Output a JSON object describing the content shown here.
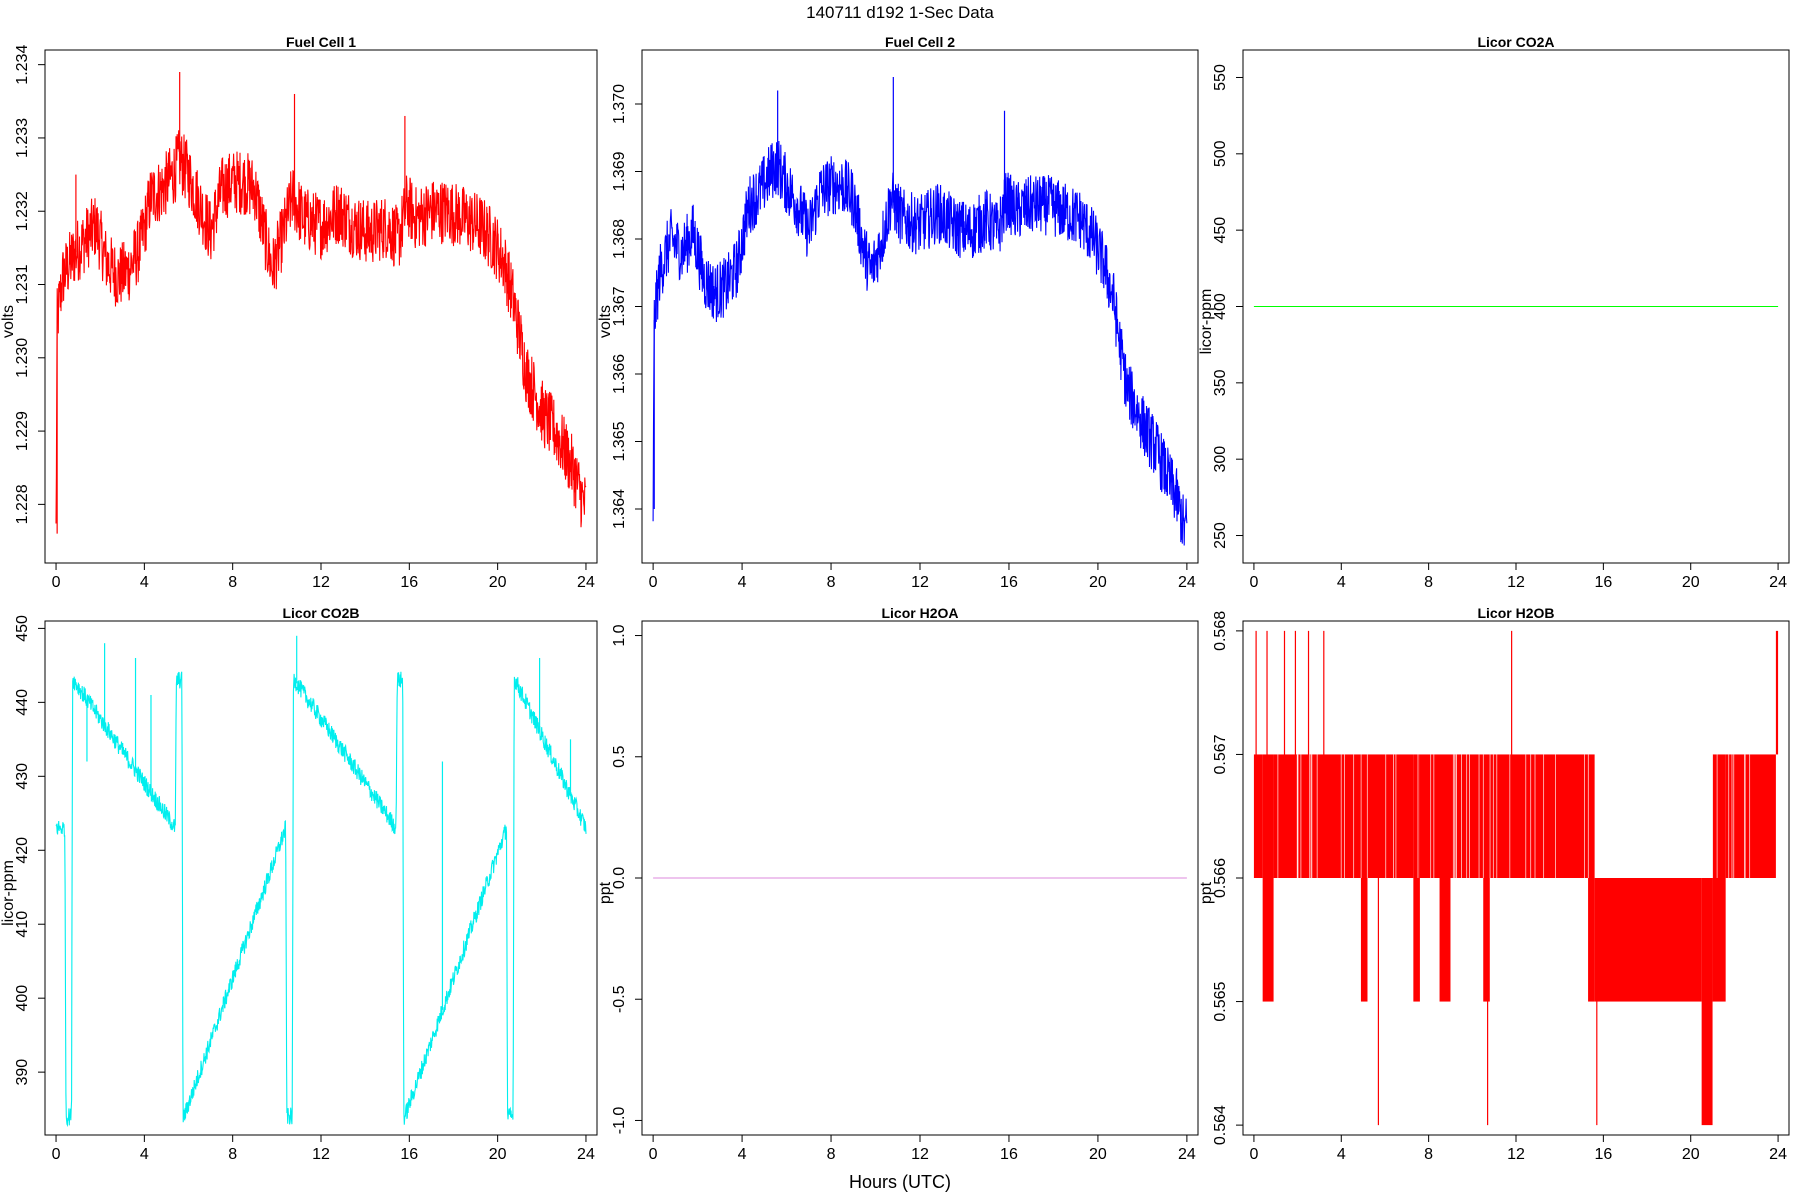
{
  "figure": {
    "title": "140711   d192   1-Sec Data",
    "xlabel": "Hours (UTC)"
  },
  "chart_data": [
    {
      "type": "line",
      "title": "Fuel Cell 1",
      "ylabel": "volts",
      "color": "#ff0000",
      "noise": 0.00045,
      "xlim": [
        -0.5,
        24.5
      ],
      "ylim": [
        1.2272,
        1.2342
      ],
      "xticks": [
        0,
        4,
        8,
        12,
        16,
        20,
        24
      ],
      "yticks": [
        1.228,
        1.229,
        1.23,
        1.231,
        1.232,
        1.233,
        1.234
      ],
      "ytick_labels": [
        "1.228",
        "1.229",
        "1.230",
        "1.231",
        "1.232",
        "1.233",
        "1.234"
      ],
      "x": [
        0,
        0.05,
        0.3,
        0.8,
        1.3,
        1.8,
        2.3,
        2.8,
        3.3,
        3.8,
        4.3,
        4.8,
        5.3,
        5.6,
        6.0,
        6.5,
        7.0,
        7.5,
        8.0,
        8.5,
        9.0,
        9.5,
        9.8,
        10.3,
        10.7,
        11.2,
        12.0,
        12.8,
        13.5,
        14.2,
        15.0,
        15.5,
        15.9,
        16.3,
        17.0,
        17.8,
        18.5,
        19.2,
        19.8,
        20.3,
        20.7,
        21.0,
        21.3,
        21.7,
        22.1,
        22.6,
        23.1,
        23.5,
        23.9,
        24.0
      ],
      "y": [
        1.2276,
        1.2305,
        1.2311,
        1.2314,
        1.2316,
        1.2318,
        1.2313,
        1.2311,
        1.2312,
        1.2315,
        1.2322,
        1.2323,
        1.2325,
        1.2327,
        1.2325,
        1.2321,
        1.2317,
        1.2323,
        1.2324,
        1.2324,
        1.2323,
        1.2316,
        1.2312,
        1.2317,
        1.2322,
        1.2319,
        1.2318,
        1.232,
        1.2318,
        1.2317,
        1.2318,
        1.2316,
        1.2321,
        1.2319,
        1.232,
        1.232,
        1.2319,
        1.2318,
        1.2316,
        1.2313,
        1.2308,
        1.2303,
        1.2298,
        1.2295,
        1.2292,
        1.229,
        1.2287,
        1.2284,
        1.228,
        1.228
      ],
      "spikes": [
        [
          0.05,
          1.2276
        ],
        [
          0.9,
          1.2325
        ],
        [
          5.6,
          1.2339
        ],
        [
          10.8,
          1.2336
        ],
        [
          15.8,
          1.2333
        ]
      ]
    },
    {
      "type": "line",
      "title": "Fuel Cell 2",
      "ylabel": "volts",
      "color": "#0000ff",
      "noise": 0.00045,
      "xlim": [
        -0.5,
        24.5
      ],
      "ylim": [
        1.3632,
        1.3708
      ],
      "xticks": [
        0,
        4,
        8,
        12,
        16,
        20,
        24
      ],
      "yticks": [
        1.364,
        1.365,
        1.366,
        1.367,
        1.368,
        1.369,
        1.37
      ],
      "ytick_labels": [
        "1.364",
        "1.365",
        "1.366",
        "1.367",
        "1.368",
        "1.369",
        "1.370"
      ],
      "x": [
        0,
        0.05,
        0.3,
        0.8,
        1.3,
        1.8,
        2.3,
        2.8,
        3.3,
        3.8,
        4.3,
        4.8,
        5.3,
        5.6,
        6.0,
        6.5,
        7.0,
        7.5,
        8.0,
        8.5,
        9.0,
        9.5,
        9.8,
        10.3,
        10.7,
        11.2,
        12.0,
        12.8,
        13.5,
        14.2,
        15.0,
        15.5,
        15.9,
        16.3,
        17.0,
        17.8,
        18.5,
        19.2,
        19.8,
        20.3,
        20.7,
        21.0,
        21.3,
        21.7,
        22.1,
        22.6,
        23.1,
        23.5,
        23.9,
        24.0
      ],
      "y": [
        1.364,
        1.3668,
        1.3675,
        1.368,
        1.3678,
        1.3681,
        1.3674,
        1.3672,
        1.3673,
        1.3676,
        1.3685,
        1.3687,
        1.369,
        1.3691,
        1.3688,
        1.3685,
        1.3681,
        1.3687,
        1.3688,
        1.3688,
        1.3686,
        1.3678,
        1.3675,
        1.368,
        1.3686,
        1.3683,
        1.3682,
        1.3684,
        1.3682,
        1.3681,
        1.3683,
        1.3681,
        1.3686,
        1.3684,
        1.3685,
        1.3685,
        1.3684,
        1.3683,
        1.368,
        1.3676,
        1.3671,
        1.3664,
        1.3658,
        1.3655,
        1.3652,
        1.3649,
        1.3645,
        1.3642,
        1.3637,
        1.3638
      ],
      "spikes": [
        [
          0.05,
          1.364
        ],
        [
          5.6,
          1.3702
        ],
        [
          10.8,
          1.3704
        ],
        [
          15.8,
          1.3699
        ]
      ]
    },
    {
      "type": "line",
      "title": "Licor CO2A",
      "ylabel": "licor-ppm",
      "color": "#00ff00",
      "noise": 0,
      "xlim": [
        -0.5,
        24.5
      ],
      "ylim": [
        232,
        568
      ],
      "xticks": [
        0,
        4,
        8,
        12,
        16,
        20,
        24
      ],
      "yticks": [
        250,
        300,
        350,
        400,
        450,
        500,
        550
      ],
      "ytick_labels": [
        "250",
        "300",
        "350",
        "400",
        "450",
        "500",
        "550"
      ],
      "x": [
        0,
        24
      ],
      "y": [
        400,
        400
      ],
      "spikes": []
    },
    {
      "type": "line",
      "title": "Licor CO2B",
      "ylabel": "licor-ppm",
      "color": "#00eeee",
      "noise": 1.2,
      "xlim": [
        -0.5,
        24.5
      ],
      "ylim": [
        381.5,
        451
      ],
      "xticks": [
        0,
        4,
        8,
        12,
        16,
        20,
        24
      ],
      "yticks": [
        390,
        400,
        410,
        420,
        430,
        440,
        450
      ],
      "ytick_labels": [
        "390",
        "400",
        "410",
        "420",
        "430",
        "440",
        "450"
      ],
      "x": [
        0,
        0.4,
        0.45,
        0.5,
        0.7,
        0.75,
        0.8,
        5.4,
        5.45,
        5.5,
        5.7,
        5.75,
        5.8,
        10.4,
        10.45,
        10.5,
        10.7,
        10.75,
        10.8,
        15.4,
        15.45,
        15.5,
        15.7,
        15.75,
        15.8,
        20.4,
        20.45,
        20.5,
        20.7,
        20.75,
        20.8,
        24.0
      ],
      "y": [
        423,
        423,
        384,
        384,
        384,
        443,
        443,
        423,
        443,
        443,
        443,
        384,
        384,
        423,
        384,
        384,
        384,
        443,
        443,
        423,
        443,
        443,
        443,
        384,
        384,
        423,
        384,
        384,
        384,
        443,
        443,
        423
      ],
      "spikes": [
        [
          2.2,
          448
        ],
        [
          3.6,
          446
        ],
        [
          4.3,
          441
        ],
        [
          10.9,
          449
        ],
        [
          21.9,
          446
        ],
        [
          1.4,
          432
        ],
        [
          3.0,
          433
        ],
        [
          17.5,
          432
        ],
        [
          23.3,
          435
        ]
      ]
    },
    {
      "type": "line",
      "title": "Licor H2OA",
      "ylabel": "ppt",
      "color": "#dd88dd",
      "noise": 0,
      "xlim": [
        -0.5,
        24.5
      ],
      "ylim": [
        -1.06,
        1.06
      ],
      "xticks": [
        0,
        4,
        8,
        12,
        16,
        20,
        24
      ],
      "yticks": [
        -1.0,
        -0.5,
        0.0,
        0.5,
        1.0
      ],
      "ytick_labels": [
        "-1.0",
        "-0.5",
        "0.0",
        "0.5",
        "1.0"
      ],
      "x": [
        0,
        24
      ],
      "y": [
        0,
        0
      ],
      "spikes": []
    },
    {
      "type": "area",
      "title": "Licor H2OB",
      "ylabel": "ppt",
      "color": "#ff0000",
      "xlim": [
        -0.5,
        24.5
      ],
      "ylim": [
        0.56392,
        0.56808
      ],
      "xticks": [
        0,
        4,
        8,
        12,
        16,
        20,
        24
      ],
      "yticks": [
        0.564,
        0.565,
        0.566,
        0.567,
        0.568
      ],
      "ytick_labels": [
        "0.564",
        "0.565",
        "0.566",
        "0.567",
        "0.568"
      ],
      "blocks": [
        {
          "x0": 0.0,
          "x1": 0.4,
          "low": 0.566,
          "high": 0.567
        },
        {
          "x0": 0.4,
          "x1": 0.9,
          "low": 0.565,
          "high": 0.567
        },
        {
          "x0": 0.9,
          "x1": 7.3,
          "low": 0.566,
          "high": 0.567
        },
        {
          "x0": 4.9,
          "x1": 5.2,
          "low": 0.565,
          "high": 0.566
        },
        {
          "x0": 7.3,
          "x1": 7.6,
          "low": 0.565,
          "high": 0.567
        },
        {
          "x0": 7.6,
          "x1": 15.3,
          "low": 0.566,
          "high": 0.567
        },
        {
          "x0": 8.5,
          "x1": 9.0,
          "low": 0.565,
          "high": 0.566
        },
        {
          "x0": 10.5,
          "x1": 10.8,
          "low": 0.565,
          "high": 0.566
        },
        {
          "x0": 15.3,
          "x1": 15.6,
          "low": 0.565,
          "high": 0.567
        },
        {
          "x0": 15.6,
          "x1": 20.5,
          "low": 0.565,
          "high": 0.566
        },
        {
          "x0": 20.5,
          "x1": 21.0,
          "low": 0.564,
          "high": 0.566
        },
        {
          "x0": 21.0,
          "x1": 21.6,
          "low": 0.565,
          "high": 0.567
        },
        {
          "x0": 21.6,
          "x1": 23.9,
          "low": 0.566,
          "high": 0.567
        },
        {
          "x0": 23.9,
          "x1": 24.0,
          "low": 0.567,
          "high": 0.568
        }
      ],
      "spikes": [
        [
          0.1,
          0.568
        ],
        [
          0.6,
          0.568
        ],
        [
          1.4,
          0.568
        ],
        [
          1.9,
          0.568
        ],
        [
          2.5,
          0.568
        ],
        [
          3.2,
          0.568
        ],
        [
          11.8,
          0.568
        ],
        [
          5.7,
          0.564
        ],
        [
          10.7,
          0.564
        ],
        [
          15.7,
          0.564
        ]
      ]
    }
  ]
}
